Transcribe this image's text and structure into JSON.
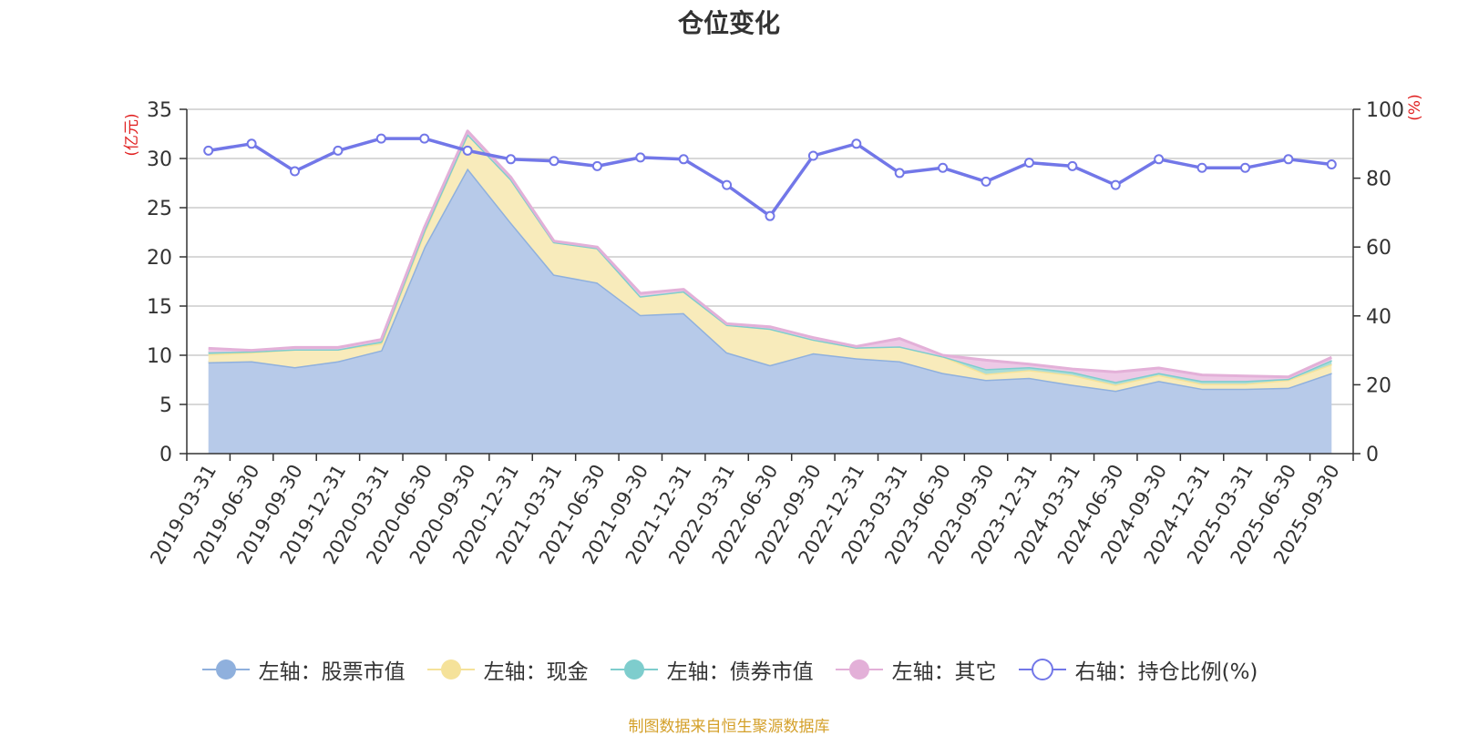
{
  "title": "仓位变化",
  "source": "制图数据来自恒生聚源数据库",
  "chart_data": {
    "type": "area",
    "title": "仓位变化",
    "categories": [
      "2019-03-31",
      "2019-06-30",
      "2019-09-30",
      "2019-12-31",
      "2020-03-31",
      "2020-06-30",
      "2020-09-30",
      "2020-12-31",
      "2021-03-31",
      "2021-06-30",
      "2021-09-30",
      "2021-12-31",
      "2022-03-31",
      "2022-06-30",
      "2022-09-30",
      "2022-12-31",
      "2023-03-31",
      "2023-06-30",
      "2023-09-30",
      "2023-12-31",
      "2024-03-31",
      "2024-06-30",
      "2024-09-30",
      "2024-12-31",
      "2025-03-31",
      "2025-06-30",
      "2025-09-30"
    ],
    "left_axis": {
      "label": "(亿元)",
      "min": 0,
      "max": 35,
      "ticks": [
        0,
        5,
        10,
        15,
        20,
        25,
        30,
        35
      ]
    },
    "right_axis": {
      "label": "(%)",
      "min": 0,
      "max": 100,
      "ticks": [
        0,
        20,
        40,
        60,
        80,
        100
      ]
    },
    "grid": true,
    "legend_position": "bottom",
    "series": [
      {
        "name": "左轴：股票市值",
        "axis": "left",
        "stack": true,
        "color": "#8fb0dd",
        "fill": "#b7cae9",
        "values": [
          9.3,
          9.4,
          8.8,
          9.4,
          10.5,
          21.0,
          29.0,
          23.5,
          18.2,
          17.4,
          14.1,
          14.3,
          10.3,
          9.0,
          10.2,
          9.7,
          9.4,
          8.2,
          7.5,
          7.7,
          7.0,
          6.4,
          7.4,
          6.6,
          6.6,
          6.7,
          8.2
        ]
      },
      {
        "name": "左轴：现金",
        "axis": "left",
        "stack": true,
        "color": "#f5e29a",
        "fill": "#f8ebbb",
        "values": [
          0.8,
          0.9,
          1.8,
          1.2,
          0.7,
          1.5,
          3.5,
          4.4,
          3.3,
          3.5,
          1.9,
          2.2,
          2.8,
          3.7,
          1.4,
          1.1,
          1.5,
          1.7,
          0.6,
          0.8,
          1.0,
          0.6,
          0.6,
          0.5,
          0.5,
          0.8,
          0.9
        ]
      },
      {
        "name": "左轴：债券市值",
        "axis": "left",
        "stack": true,
        "color": "#7ecdcd",
        "fill": "#a9dcd7",
        "values": [
          0.2,
          0.1,
          0.0,
          0.0,
          0.2,
          0.2,
          0.0,
          0.0,
          0.0,
          0.0,
          0.0,
          0.0,
          0.0,
          0.0,
          0.0,
          0.0,
          0.0,
          0.0,
          0.5,
          0.3,
          0.3,
          0.3,
          0.2,
          0.3,
          0.3,
          0.1,
          0.4
        ]
      },
      {
        "name": "左轴：其它",
        "axis": "left",
        "stack": true,
        "color": "#e3b0d8",
        "fill": "#edc9e6",
        "values": [
          0.4,
          0.1,
          0.2,
          0.2,
          0.2,
          0.3,
          0.3,
          0.2,
          0.1,
          0.1,
          0.3,
          0.2,
          0.1,
          0.2,
          0.2,
          0.1,
          0.8,
          0.1,
          0.9,
          0.3,
          0.3,
          1.0,
          0.5,
          0.6,
          0.5,
          0.2,
          0.3
        ]
      },
      {
        "name": "右轴：持仓比例(%)",
        "axis": "right",
        "stack": false,
        "color": "#7277e8",
        "values": [
          88.0,
          90.0,
          82.0,
          88.0,
          91.5,
          91.5,
          88.0,
          85.5,
          85.0,
          83.5,
          86.0,
          85.5,
          78.0,
          69.0,
          86.5,
          90.0,
          81.5,
          83.0,
          79.0,
          84.5,
          83.5,
          78.0,
          85.5,
          83.0,
          83.0,
          85.5,
          84.0
        ]
      }
    ]
  }
}
